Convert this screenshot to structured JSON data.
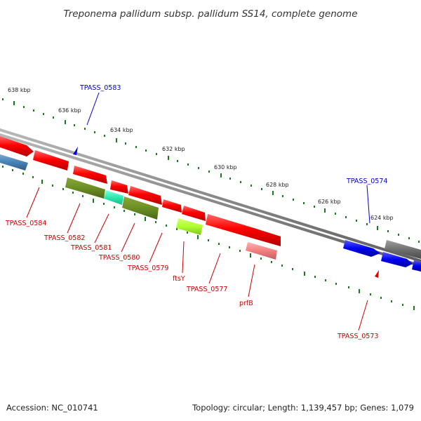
{
  "title": "Treponema pallidum subsp. pallidum SS14, complete genome",
  "footer": {
    "accession": "Accession: NC_010741",
    "summary": "Topology: circular; Length: 1,139,457 bp; Genes: 1,079"
  },
  "scale": {
    "ticks": [
      "638 kbp",
      "636 kbp",
      "634 kbp",
      "632 kbp",
      "630 kbp",
      "628 kbp",
      "626 kbp",
      "624 kbp"
    ],
    "tick_color": "#1a7a1a"
  },
  "colors": {
    "forward_label": "#0000cc",
    "reverse_label": "#cc0000",
    "backbone": "#808080"
  },
  "genes": [
    {
      "name": "TPASS_0583",
      "strand": "forward"
    },
    {
      "name": "TPASS_0574",
      "strand": "forward"
    },
    {
      "name": "TPASS_0584",
      "strand": "reverse"
    },
    {
      "name": "TPASS_0582",
      "strand": "reverse"
    },
    {
      "name": "TPASS_0581",
      "strand": "reverse"
    },
    {
      "name": "TPASS_0580",
      "strand": "reverse"
    },
    {
      "name": "TPASS_0579",
      "strand": "reverse"
    },
    {
      "name": "ftsY",
      "strand": "reverse"
    },
    {
      "name": "TPASS_0577",
      "strand": "reverse"
    },
    {
      "name": "prfB",
      "strand": "reverse"
    },
    {
      "name": "TPASS_0573",
      "strand": "reverse"
    }
  ],
  "markers": [
    {
      "name": "forward-strand-marker",
      "color": "#0000dd"
    },
    {
      "name": "reverse-strand-marker",
      "color": "#dd0000"
    }
  ]
}
